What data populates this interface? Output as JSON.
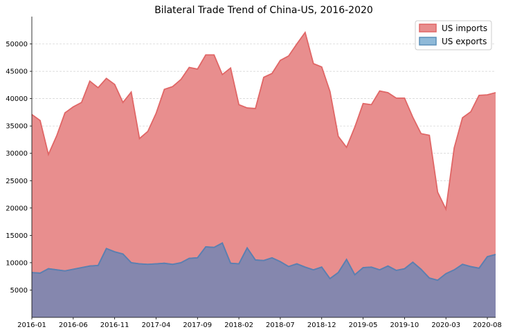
{
  "chart_data": {
    "type": "area",
    "title": "Bilateral Trade Trend of China-US, 2016-2020",
    "xlabel": "",
    "ylabel": "",
    "ylim": [
      0,
      55000
    ],
    "y_ticks": [
      5000,
      10000,
      15000,
      20000,
      25000,
      30000,
      35000,
      40000,
      45000,
      50000
    ],
    "x_tick_labels": [
      "2016-01",
      "2016-06",
      "2016-11",
      "2017-04",
      "2017-09",
      "2018-02",
      "2018-07",
      "2018-12",
      "2019-05",
      "2019-10",
      "2020-03",
      "2020-08"
    ],
    "grid": "horizontal dashed",
    "legend_position": "top-right",
    "x": [
      "2016-01",
      "2016-02",
      "2016-03",
      "2016-04",
      "2016-05",
      "2016-06",
      "2016-07",
      "2016-08",
      "2016-09",
      "2016-10",
      "2016-11",
      "2016-12",
      "2017-01",
      "2017-02",
      "2017-03",
      "2017-04",
      "2017-05",
      "2017-06",
      "2017-07",
      "2017-08",
      "2017-09",
      "2017-10",
      "2017-11",
      "2017-12",
      "2018-01",
      "2018-02",
      "2018-03",
      "2018-04",
      "2018-05",
      "2018-06",
      "2018-07",
      "2018-08",
      "2018-09",
      "2018-10",
      "2018-11",
      "2018-12",
      "2019-01",
      "2019-02",
      "2019-03",
      "2019-04",
      "2019-05",
      "2019-06",
      "2019-07",
      "2019-08",
      "2019-09",
      "2019-10",
      "2019-11",
      "2019-12",
      "2020-01",
      "2020-02",
      "2020-03",
      "2020-04",
      "2020-05",
      "2020-06",
      "2020-07",
      "2020-08",
      "2020-09"
    ],
    "series": [
      {
        "name": "US imports",
        "color": "#e06666",
        "fill": "#e88e8e",
        "values": [
          37100,
          36000,
          29800,
          33200,
          37400,
          38500,
          39300,
          43200,
          42000,
          43700,
          42600,
          39300,
          41200,
          32700,
          34000,
          37300,
          41700,
          42200,
          43500,
          45700,
          45400,
          48000,
          48000,
          44400,
          45600,
          38900,
          38300,
          38200,
          43900,
          44600,
          47000,
          47800,
          50000,
          52100,
          46400,
          45800,
          41300,
          33100,
          31100,
          34800,
          39100,
          38900,
          41400,
          41100,
          40100,
          40100,
          36600,
          33600,
          33300,
          22900,
          19800,
          31000,
          36500,
          37600,
          40600,
          40700,
          41100
        ]
      },
      {
        "name": "US exports",
        "color": "#5b8fb9",
        "fill": "#8fb9d8",
        "values": [
          8200,
          8100,
          8900,
          8700,
          8500,
          8800,
          9100,
          9400,
          9500,
          12600,
          12000,
          11600,
          10000,
          9800,
          9700,
          9800,
          9900,
          9700,
          10000,
          10800,
          10900,
          12900,
          12800,
          13600,
          9900,
          9800,
          12700,
          10500,
          10400,
          10900,
          10200,
          9300,
          9800,
          9200,
          8700,
          9200,
          7100,
          8200,
          10600,
          7800,
          9100,
          9200,
          8700,
          9400,
          8600,
          8900,
          10100,
          8800,
          7200,
          6800,
          8000,
          8700,
          9700,
          9300,
          9000,
          11100,
          11500
        ]
      }
    ]
  }
}
